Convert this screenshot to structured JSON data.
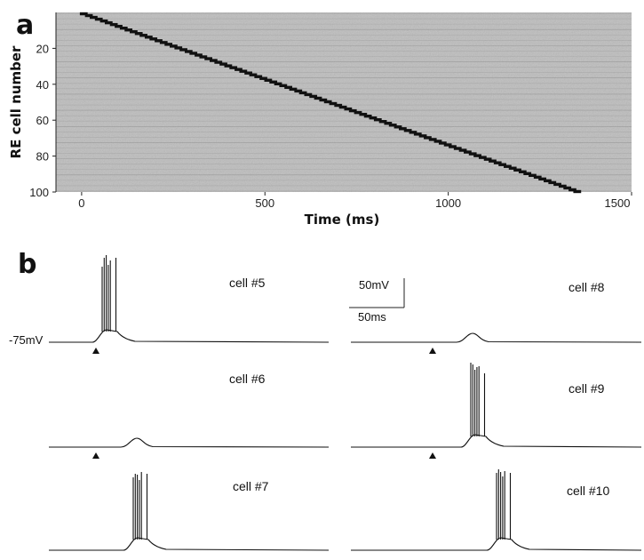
{
  "panel_a": {
    "label": "a",
    "chart_data": {
      "type": "heatmap",
      "title": "",
      "xlabel": "Time (ms)",
      "ylabel": "RE cell number",
      "xlim": [
        -70,
        1500
      ],
      "ylim": [
        0,
        100
      ],
      "y_inverted": true,
      "xticks": [
        0,
        500,
        1000,
        1500
      ],
      "yticks": [
        20,
        40,
        60,
        80,
        100
      ],
      "ytick_labels": [
        "20",
        "40",
        "60",
        "80",
        "100"
      ],
      "colors": {
        "background": "#bdbdbd",
        "spike": "#111111"
      },
      "spike_times_ms": [
        0,
        14,
        27,
        41,
        55,
        68,
        82,
        95,
        109,
        122,
        136,
        150,
        163,
        177,
        190,
        204,
        218,
        231,
        245,
        258,
        272,
        286,
        299,
        313,
        326,
        340,
        354,
        367,
        381,
        394,
        408,
        422,
        435,
        449,
        462,
        476,
        490,
        503,
        517,
        530,
        544,
        558,
        571,
        585,
        598,
        612,
        626,
        639,
        653,
        666,
        680,
        694,
        707,
        721,
        734,
        748,
        762,
        775,
        789,
        802,
        816,
        830,
        843,
        857,
        870,
        884,
        898,
        911,
        925,
        938,
        952,
        966,
        979,
        993,
        1006,
        1020,
        1034,
        1047,
        1061,
        1074,
        1088,
        1102,
        1115,
        1129,
        1142,
        1156,
        1170,
        1183,
        1197,
        1210,
        1224,
        1238,
        1251,
        1265,
        1278,
        1292,
        1306,
        1319,
        1333,
        1346
      ]
    }
  },
  "panel_b": {
    "label": "b",
    "resting_label": "-75mV",
    "scale_bar": {
      "voltage_label": "50mV",
      "time_label": "50ms"
    },
    "cells": [
      {
        "label": "cell #5",
        "stimulus": true,
        "spikes": 6,
        "hump": "large"
      },
      {
        "label": "cell #6",
        "stimulus": true,
        "spikes": 0,
        "hump": "small"
      },
      {
        "label": "cell #7",
        "stimulus": false,
        "spikes": 6,
        "hump": "large"
      },
      {
        "label": "cell #8",
        "stimulus": true,
        "spikes": 0,
        "hump": "small"
      },
      {
        "label": "cell #9",
        "stimulus": true,
        "spikes": 6,
        "hump": "large"
      },
      {
        "label": "cell #10",
        "stimulus": false,
        "spikes": 6,
        "hump": "large"
      }
    ]
  }
}
